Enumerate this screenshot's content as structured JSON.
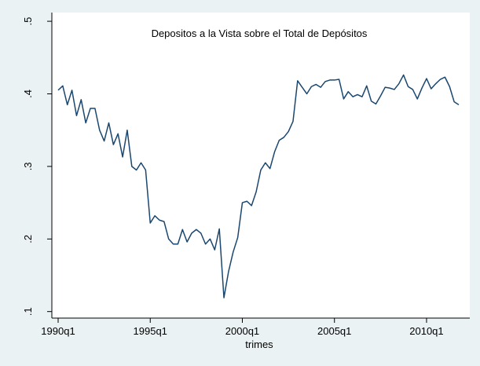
{
  "chart_data": {
    "type": "line",
    "title": "Depositos a la Vista sobre el Total de Depósitos",
    "x_label": "trimes",
    "x": [
      "1990q1",
      "1990q2",
      "1990q3",
      "1990q4",
      "1991q1",
      "1991q2",
      "1991q3",
      "1991q4",
      "1992q1",
      "1992q2",
      "1992q3",
      "1992q4",
      "1993q1",
      "1993q2",
      "1993q3",
      "1993q4",
      "1994q1",
      "1994q2",
      "1994q3",
      "1994q4",
      "1995q1",
      "1995q2",
      "1995q3",
      "1995q4",
      "1996q1",
      "1996q2",
      "1996q3",
      "1996q4",
      "1997q1",
      "1997q2",
      "1997q3",
      "1997q4",
      "1998q1",
      "1998q2",
      "1998q3",
      "1998q4",
      "1999q1",
      "1999q2",
      "1999q3",
      "1999q4",
      "2000q1",
      "2000q2",
      "2000q3",
      "2000q4",
      "2001q1",
      "2001q2",
      "2001q3",
      "2001q4",
      "2002q1",
      "2002q2",
      "2002q3",
      "2002q4",
      "2003q1",
      "2003q2",
      "2003q3",
      "2003q4",
      "2004q1",
      "2004q2",
      "2004q3",
      "2004q4",
      "2005q1",
      "2005q2",
      "2005q3",
      "2005q4",
      "2006q1",
      "2006q2",
      "2006q3",
      "2006q4",
      "2007q1",
      "2007q2",
      "2007q3",
      "2007q4",
      "2008q1",
      "2008q2",
      "2008q3",
      "2008q4",
      "2009q1",
      "2009q2",
      "2009q3",
      "2009q4",
      "2010q1",
      "2010q2",
      "2010q3",
      "2010q4",
      "2011q1",
      "2011q2",
      "2011q3",
      "2011q4"
    ],
    "series": [
      {
        "color": "#1a476f",
        "values": [
          0.405,
          0.411,
          0.385,
          0.405,
          0.37,
          0.392,
          0.36,
          0.38,
          0.38,
          0.35,
          0.335,
          0.36,
          0.33,
          0.345,
          0.313,
          0.35,
          0.3,
          0.295,
          0.305,
          0.295,
          0.222,
          0.232,
          0.226,
          0.224,
          0.2,
          0.193,
          0.193,
          0.213,
          0.196,
          0.208,
          0.213,
          0.208,
          0.193,
          0.2,
          0.185,
          0.214,
          0.119,
          0.155,
          0.182,
          0.202,
          0.25,
          0.252,
          0.246,
          0.265,
          0.295,
          0.305,
          0.297,
          0.32,
          0.336,
          0.34,
          0.348,
          0.362,
          0.418,
          0.409,
          0.4,
          0.41,
          0.413,
          0.409,
          0.417,
          0.419,
          0.419,
          0.42,
          0.393,
          0.403,
          0.396,
          0.399,
          0.396,
          0.411,
          0.39,
          0.386,
          0.397,
          0.409,
          0.408,
          0.406,
          0.414,
          0.426,
          0.41,
          0.406,
          0.393,
          0.408,
          0.421,
          0.407,
          0.414,
          0.42,
          0.423,
          0.41,
          0.389,
          0.385
        ]
      }
    ],
    "ylim": [
      0.091,
      0.512
    ],
    "yticks": [
      {
        "value": 0.1,
        "label": ".1"
      },
      {
        "value": 0.2,
        "label": ".2"
      },
      {
        "value": 0.3,
        "label": ".3"
      },
      {
        "value": 0.4,
        "label": ".4"
      },
      {
        "value": 0.5,
        "label": ".5"
      }
    ],
    "xticks": [
      "1990q1",
      "1995q1",
      "2000q1",
      "2005q1",
      "2010q1"
    ],
    "grid": false
  }
}
